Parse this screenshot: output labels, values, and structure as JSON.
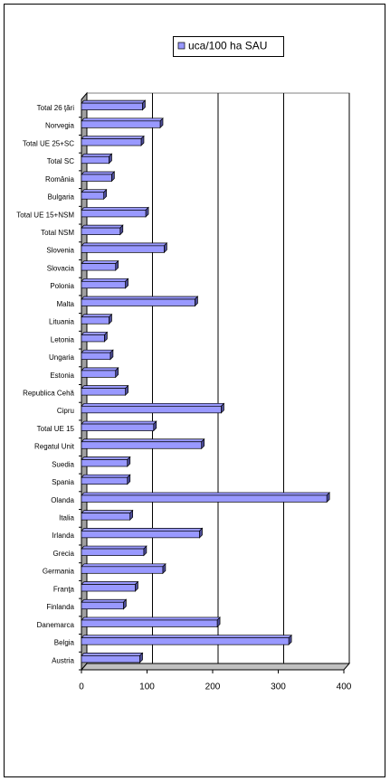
{
  "chart_data": {
    "type": "bar",
    "orientation": "horizontal",
    "categories": [
      "Austria",
      "Belgia",
      "Danemarca",
      "Finlanda",
      "Franţa",
      "Germania",
      "Grecia",
      "Irlanda",
      "Italia",
      "Olanda",
      "Spania",
      "Suedia",
      "Regatul Unit",
      "Total UE 15",
      "Cipru",
      "Republica Cehă",
      "Estonia",
      "Ungaria",
      "Letonia",
      "Lituania",
      "Malta",
      "Polonia",
      "Slovacia",
      "Slovenia",
      "Total NSM",
      "Total UE 15+NSM",
      "Bulgaria",
      "România",
      "Total SC",
      "Total UE 25+SC",
      "Norvegia",
      "Total 26 ţări"
    ],
    "series": [
      {
        "name": "uca/100 ha SAU",
        "color": "#9999ff",
        "values": [
          89,
          316,
          207,
          64,
          82,
          124,
          95,
          180,
          74,
          374,
          70,
          70,
          183,
          110,
          213,
          67,
          52,
          44,
          35,
          42,
          173,
          67,
          52,
          126,
          59,
          98,
          34,
          46,
          42,
          91,
          120,
          93
        ]
      }
    ],
    "xlim": [
      0,
      400
    ],
    "xticks": [
      0,
      100,
      200,
      300,
      400
    ],
    "grid": true,
    "legend": "top"
  }
}
